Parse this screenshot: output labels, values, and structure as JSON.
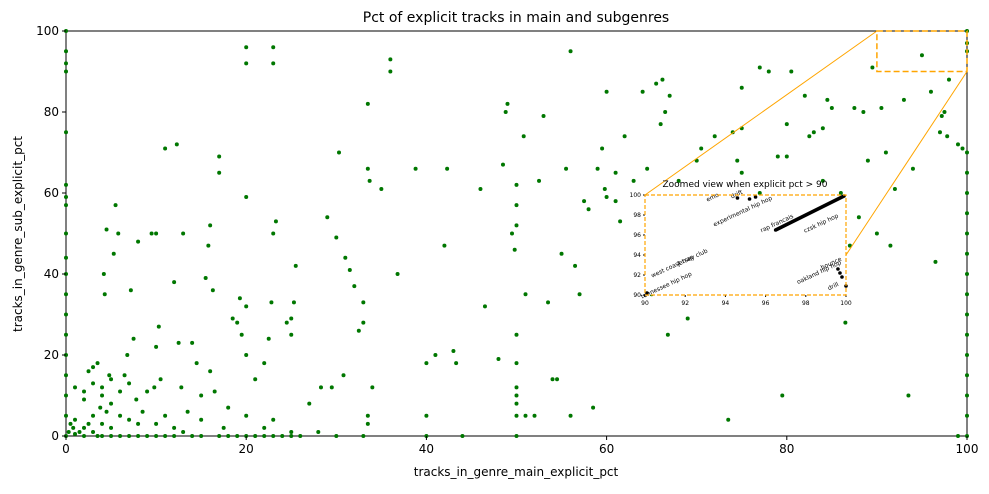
{
  "chart_data": {
    "type": "scatter",
    "title": "Pct of explicit tracks in main and subgenres",
    "xlabel": "tracks_in_genre_main_explicit_pct",
    "ylabel": "tracks_in_genre_sub_explicit_pct",
    "xlim": [
      0,
      100
    ],
    "ylim": [
      0,
      100
    ],
    "xticks": [
      "0",
      "20",
      "40",
      "60",
      "80",
      "100"
    ],
    "yticks": [
      "0",
      "20",
      "40",
      "60",
      "80",
      "100"
    ],
    "grid": false,
    "marker_color": "#007700",
    "highlight_color": "#ffa500",
    "points": [
      [
        0,
        0
      ],
      [
        0,
        5
      ],
      [
        0,
        10
      ],
      [
        0,
        15
      ],
      [
        0,
        20
      ],
      [
        0,
        25
      ],
      [
        0,
        30
      ],
      [
        0,
        35
      ],
      [
        0,
        40
      ],
      [
        0,
        44
      ],
      [
        0,
        50
      ],
      [
        0,
        57
      ],
      [
        0,
        59
      ],
      [
        0,
        62
      ],
      [
        0,
        75
      ],
      [
        0,
        90
      ],
      [
        0,
        92
      ],
      [
        0,
        95
      ],
      [
        0,
        100
      ],
      [
        0.3,
        1
      ],
      [
        0.5,
        3
      ],
      [
        0.8,
        2
      ],
      [
        1,
        0.5
      ],
      [
        1,
        4
      ],
      [
        1,
        12
      ],
      [
        1.5,
        1
      ],
      [
        2,
        0
      ],
      [
        2,
        2
      ],
      [
        2,
        9
      ],
      [
        2,
        11
      ],
      [
        2.5,
        3
      ],
      [
        2.5,
        16
      ],
      [
        3,
        1
      ],
      [
        3,
        5
      ],
      [
        3,
        13
      ],
      [
        3,
        17
      ],
      [
        3.5,
        0
      ],
      [
        3.5,
        18
      ],
      [
        3.8,
        7
      ],
      [
        4,
        0
      ],
      [
        4,
        3
      ],
      [
        4,
        10
      ],
      [
        4,
        12
      ],
      [
        4.2,
        40
      ],
      [
        4.3,
        35
      ],
      [
        4.5,
        6
      ],
      [
        4.5,
        51
      ],
      [
        4.8,
        15
      ],
      [
        5,
        0
      ],
      [
        5,
        2
      ],
      [
        5,
        8
      ],
      [
        5,
        14
      ],
      [
        5.3,
        45
      ],
      [
        5.5,
        57
      ],
      [
        5.8,
        50
      ],
      [
        6,
        0
      ],
      [
        6,
        5
      ],
      [
        6,
        11
      ],
      [
        6.5,
        15
      ],
      [
        6.8,
        20
      ],
      [
        7,
        0
      ],
      [
        7,
        4
      ],
      [
        7,
        13
      ],
      [
        7.2,
        36
      ],
      [
        7.5,
        24
      ],
      [
        7.8,
        9
      ],
      [
        8,
        0
      ],
      [
        8,
        48
      ],
      [
        8,
        3
      ],
      [
        8.5,
        6
      ],
      [
        9,
        0
      ],
      [
        9,
        11
      ],
      [
        9.5,
        50
      ],
      [
        9.8,
        12
      ],
      [
        10,
        0
      ],
      [
        10,
        3
      ],
      [
        10,
        50
      ],
      [
        10,
        22
      ],
      [
        10.3,
        27
      ],
      [
        10.5,
        14
      ],
      [
        11,
        0
      ],
      [
        11,
        71
      ],
      [
        11,
        5
      ],
      [
        12,
        0
      ],
      [
        12,
        2
      ],
      [
        12,
        38
      ],
      [
        12.3,
        72
      ],
      [
        12.5,
        23
      ],
      [
        12.8,
        12
      ],
      [
        13,
        1
      ],
      [
        13,
        50
      ],
      [
        13.5,
        6
      ],
      [
        14,
        0
      ],
      [
        14,
        23
      ],
      [
        14.5,
        18
      ],
      [
        15,
        0
      ],
      [
        15,
        4
      ],
      [
        15,
        10
      ],
      [
        15.5,
        39
      ],
      [
        15.8,
        47
      ],
      [
        16,
        52
      ],
      [
        16,
        16
      ],
      [
        16.3,
        36
      ],
      [
        16.5,
        11
      ],
      [
        17,
        0
      ],
      [
        17,
        65
      ],
      [
        17,
        69
      ],
      [
        17.5,
        2
      ],
      [
        18,
        0
      ],
      [
        18,
        7
      ],
      [
        18.5,
        29
      ],
      [
        19,
        0
      ],
      [
        19,
        28
      ],
      [
        19.3,
        34
      ],
      [
        19.5,
        25
      ],
      [
        20,
        0
      ],
      [
        20,
        59
      ],
      [
        20,
        92
      ],
      [
        20,
        96
      ],
      [
        20,
        20
      ],
      [
        20,
        32
      ],
      [
        20,
        5
      ],
      [
        21,
        0
      ],
      [
        21,
        14
      ],
      [
        22,
        0
      ],
      [
        22,
        2
      ],
      [
        22,
        18
      ],
      [
        22.5,
        24
      ],
      [
        22.8,
        33
      ],
      [
        23,
        0
      ],
      [
        23,
        92
      ],
      [
        23,
        96
      ],
      [
        23,
        4
      ],
      [
        23,
        50
      ],
      [
        23.3,
        53
      ],
      [
        24,
        0
      ],
      [
        24.5,
        28
      ],
      [
        25,
        0
      ],
      [
        25,
        1
      ],
      [
        25,
        25
      ],
      [
        25,
        29
      ],
      [
        25.3,
        33
      ],
      [
        25.5,
        42
      ],
      [
        26,
        0
      ],
      [
        27,
        8
      ],
      [
        28,
        1
      ],
      [
        28.3,
        12
      ],
      [
        29,
        54
      ],
      [
        29.5,
        12
      ],
      [
        30,
        0
      ],
      [
        30,
        49
      ],
      [
        30.3,
        70
      ],
      [
        30.8,
        15
      ],
      [
        31,
        44
      ],
      [
        31.5,
        41
      ],
      [
        32,
        37
      ],
      [
        32.5,
        26
      ],
      [
        33,
        0
      ],
      [
        33,
        28
      ],
      [
        33,
        33
      ],
      [
        33.5,
        82
      ],
      [
        33.5,
        66
      ],
      [
        33.7,
        63
      ],
      [
        33.5,
        5
      ],
      [
        33.5,
        3
      ],
      [
        34,
        12
      ],
      [
        35,
        61
      ],
      [
        36,
        90
      ],
      [
        36,
        93
      ],
      [
        36.8,
        40
      ],
      [
        38.8,
        66
      ],
      [
        40,
        18
      ],
      [
        40,
        5
      ],
      [
        40,
        0
      ],
      [
        41,
        20
      ],
      [
        42,
        47
      ],
      [
        42.3,
        66
      ],
      [
        43,
        21
      ],
      [
        43.3,
        18
      ],
      [
        44,
        0
      ],
      [
        46,
        61
      ],
      [
        46.5,
        32
      ],
      [
        48,
        19
      ],
      [
        48.5,
        67
      ],
      [
        48.8,
        80
      ],
      [
        49,
        82
      ],
      [
        49.5,
        50
      ],
      [
        49.8,
        46
      ],
      [
        50,
        0
      ],
      [
        50,
        5
      ],
      [
        50,
        8
      ],
      [
        50,
        10
      ],
      [
        50,
        12
      ],
      [
        50,
        18
      ],
      [
        50,
        25
      ],
      [
        50,
        52
      ],
      [
        50,
        57
      ],
      [
        50,
        62
      ],
      [
        50.8,
        74
      ],
      [
        51,
        35
      ],
      [
        51,
        5
      ],
      [
        52,
        5
      ],
      [
        52.5,
        63
      ],
      [
        53,
        79
      ],
      [
        53.5,
        33
      ],
      [
        54,
        14
      ],
      [
        54.5,
        14
      ],
      [
        55,
        45
      ],
      [
        55.5,
        66
      ],
      [
        56,
        95
      ],
      [
        56,
        5
      ],
      [
        56.5,
        42
      ],
      [
        57,
        35
      ],
      [
        57.5,
        58
      ],
      [
        58,
        56
      ],
      [
        58.5,
        7
      ],
      [
        59,
        66
      ],
      [
        59.5,
        71
      ],
      [
        59.8,
        61
      ],
      [
        60,
        85
      ],
      [
        60,
        59
      ],
      [
        61,
        65
      ],
      [
        61,
        58
      ],
      [
        61.5,
        53
      ],
      [
        62,
        74
      ],
      [
        63,
        63
      ],
      [
        64,
        85
      ],
      [
        64.5,
        66
      ],
      [
        65,
        35
      ],
      [
        65.5,
        87
      ],
      [
        66,
        77
      ],
      [
        66.2,
        88
      ],
      [
        66.5,
        80
      ],
      [
        66.8,
        25
      ],
      [
        67,
        84
      ],
      [
        68,
        63
      ],
      [
        69,
        29
      ],
      [
        70,
        68
      ],
      [
        70.5,
        71
      ],
      [
        70,
        40
      ],
      [
        71,
        59
      ],
      [
        72,
        74
      ],
      [
        72.5,
        52
      ],
      [
        73,
        59
      ],
      [
        73.5,
        4
      ],
      [
        74,
        75
      ],
      [
        74.5,
        68
      ],
      [
        75,
        76
      ],
      [
        75,
        86
      ],
      [
        75,
        65
      ],
      [
        76,
        58
      ],
      [
        77,
        60
      ],
      [
        77,
        91
      ],
      [
        78,
        90
      ],
      [
        79,
        69
      ],
      [
        79.5,
        10
      ],
      [
        80,
        69
      ],
      [
        80,
        77
      ],
      [
        80.5,
        90
      ],
      [
        81,
        55
      ],
      [
        82,
        84
      ],
      [
        82.5,
        74
      ],
      [
        83,
        75
      ],
      [
        84,
        76
      ],
      [
        84,
        63
      ],
      [
        84.5,
        83
      ],
      [
        85,
        81
      ],
      [
        86,
        60
      ],
      [
        86.5,
        28
      ],
      [
        87,
        47
      ],
      [
        87.5,
        81
      ],
      [
        88,
        54
      ],
      [
        88.5,
        80
      ],
      [
        89,
        68
      ],
      [
        89.5,
        91
      ],
      [
        90,
        50
      ],
      [
        90.5,
        81
      ],
      [
        91,
        70
      ],
      [
        91.5,
        47
      ],
      [
        92,
        61
      ],
      [
        93,
        83
      ],
      [
        93.5,
        10
      ],
      [
        94,
        66
      ],
      [
        95,
        94
      ],
      [
        96,
        85
      ],
      [
        96.5,
        43
      ],
      [
        97,
        75
      ],
      [
        97.2,
        79
      ],
      [
        97.5,
        80
      ],
      [
        97.8,
        74
      ],
      [
        98,
        88
      ],
      [
        99,
        0
      ],
      [
        99,
        72
      ],
      [
        99.5,
        71
      ],
      [
        100,
        0
      ],
      [
        100,
        5
      ],
      [
        100,
        10
      ],
      [
        100,
        15
      ],
      [
        100,
        20
      ],
      [
        100,
        25
      ],
      [
        100,
        30
      ],
      [
        100,
        35
      ],
      [
        100,
        40
      ],
      [
        100,
        45
      ],
      [
        100,
        50
      ],
      [
        100,
        55
      ],
      [
        100,
        60
      ],
      [
        100,
        65
      ],
      [
        100,
        70
      ],
      [
        100,
        95
      ],
      [
        100,
        97
      ],
      [
        100,
        100
      ]
    ],
    "inset": {
      "title": "Zoomed view when explicit pct > 90",
      "xlim": [
        90,
        100
      ],
      "ylim": [
        90,
        100
      ],
      "xticks": [
        "90",
        "92",
        "94",
        "96",
        "98",
        "100"
      ],
      "yticks": [
        "90",
        "92",
        "94",
        "96",
        "98",
        "100"
      ],
      "points": [
        [
          90.1,
          90.2
        ],
        [
          94.6,
          99.7
        ],
        [
          95.2,
          99.6
        ],
        [
          95.5,
          99.8
        ],
        [
          99.6,
          92.6
        ],
        [
          99.7,
          92.2
        ],
        [
          99.8,
          91.8
        ],
        [
          100,
          90.9
        ]
      ],
      "diag_points": [
        96.5,
        99.9
      ],
      "labels": [
        {
          "text": "experimental hip hop",
          "x": 94.9,
          "y": 98.2
        },
        {
          "text": "emo",
          "x": 93.4,
          "y": 99.6
        },
        {
          "text": "drift",
          "x": 94.6,
          "y": 99.9
        },
        {
          "text": "rap francais",
          "x": 96.6,
          "y": 97.0
        },
        {
          "text": "czsk hip hop",
          "x": 98.8,
          "y": 97.0
        },
        {
          "text": "west coast trap",
          "x": 91.4,
          "y": 92.7
        },
        {
          "text": "jersey club",
          "x": 92.4,
          "y": 93.6
        },
        {
          "text": "tennessee hip hop",
          "x": 91.1,
          "y": 90.8
        },
        {
          "text": "oakland hip hop",
          "x": 98.7,
          "y": 92.1
        },
        {
          "text": "bounce",
          "x": 99.3,
          "y": 93.0
        },
        {
          "text": "drill",
          "x": 99.4,
          "y": 90.7
        }
      ]
    }
  }
}
